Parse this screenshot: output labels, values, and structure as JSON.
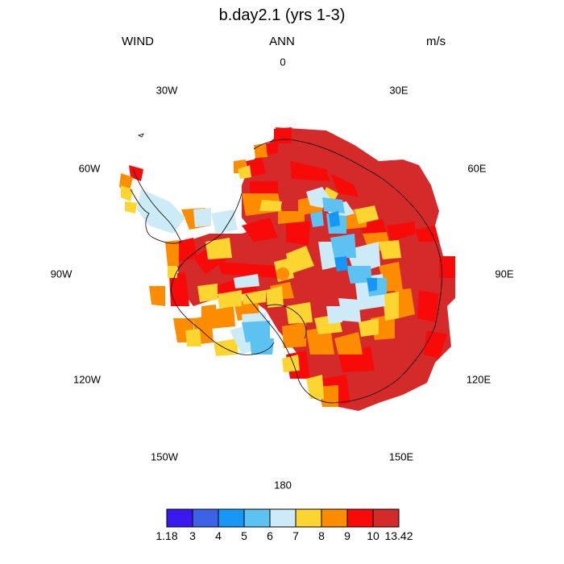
{
  "title": "b.day2.1 (yrs 1-3)",
  "left_label": "WIND",
  "center_label": "ANN",
  "right_label": "m/s",
  "longitude_labels": [
    "0",
    "30E",
    "60E",
    "90E",
    "120E",
    "150E",
    "180",
    "150W",
    "120W",
    "90W",
    "60W",
    "30W"
  ],
  "colorbar": {
    "colors": [
      "#3a18f0",
      "#3d62e6",
      "#1696f5",
      "#5cc2f2",
      "#cdeaf7",
      "#fcd530",
      "#fd8c00",
      "#f70a08",
      "#d42a2a"
    ],
    "labels": [
      "1.18",
      "3",
      "4",
      "5",
      "6",
      "7",
      "8",
      "9",
      "10",
      "13.42"
    ]
  },
  "map": {
    "projection": "south polar stereographic",
    "region": "Antarctica",
    "variable": "WIND",
    "units": "m/s",
    "coastline_color": "#000000"
  }
}
